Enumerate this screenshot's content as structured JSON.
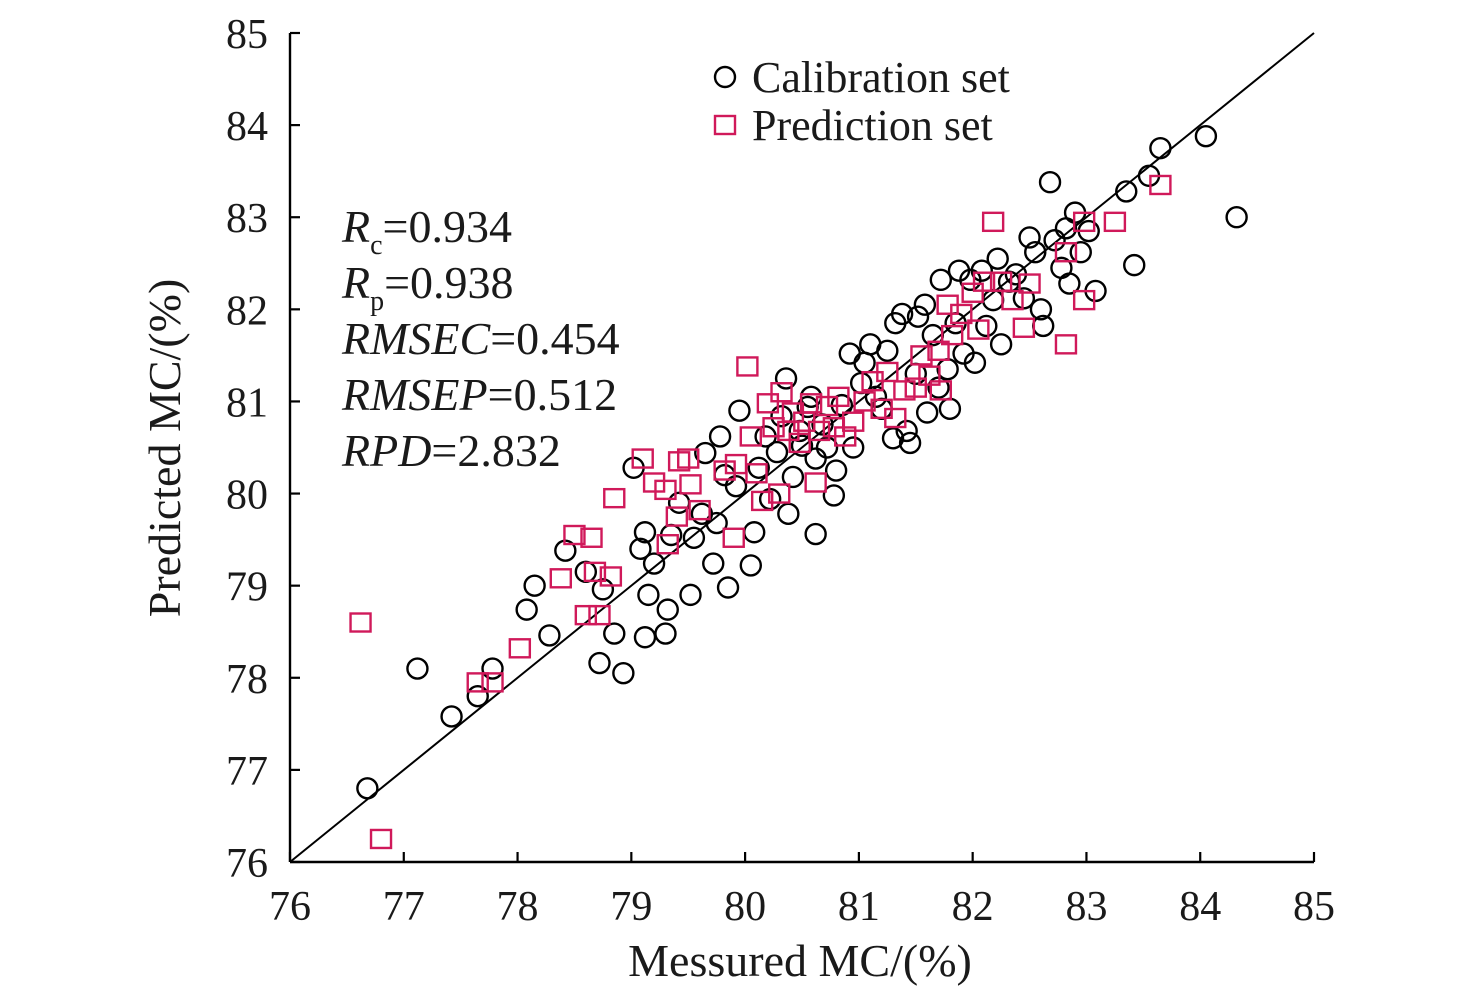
{
  "chart_data": {
    "type": "scatter",
    "xlabel": "Messured MC/(%)",
    "ylabel": "Predicted MC/(%)",
    "xlim": [
      76,
      85
    ],
    "ylim": [
      76,
      85
    ],
    "x_ticks": [
      "76",
      "77",
      "78",
      "79",
      "80",
      "81",
      "82",
      "83",
      "84",
      "85"
    ],
    "y_ticks": [
      "76",
      "77",
      "78",
      "79",
      "80",
      "81",
      "82",
      "83",
      "84",
      "85"
    ],
    "reference_line": {
      "x": [
        76,
        85
      ],
      "y": [
        76,
        85
      ]
    },
    "legend": {
      "placement": "top-right",
      "items": [
        {
          "label": "Calibration set",
          "marker": "circle",
          "color": "#000000"
        },
        {
          "label": "Prediction set",
          "marker": "square",
          "color": "#d0195a"
        }
      ]
    },
    "stats": [
      {
        "name": "R",
        "sub": "c",
        "value": "=0.934"
      },
      {
        "name": "R",
        "sub": "p",
        "value": "=0.938"
      },
      {
        "name": "RMSEC",
        "sub": "",
        "value": "=0.454"
      },
      {
        "name": "RMSEP",
        "sub": "",
        "value": "=0.512"
      },
      {
        "name": "RPD",
        "sub": "",
        "value": "=2.832"
      }
    ],
    "series": [
      {
        "name": "Calibration set",
        "color": "#000000",
        "marker": "circle",
        "points": [
          [
            76.68,
            76.8
          ],
          [
            77.12,
            78.1
          ],
          [
            77.42,
            77.58
          ],
          [
            77.65,
            77.8
          ],
          [
            77.78,
            78.1
          ],
          [
            78.08,
            78.74
          ],
          [
            78.15,
            79.0
          ],
          [
            78.28,
            78.46
          ],
          [
            78.42,
            79.38
          ],
          [
            78.6,
            79.15
          ],
          [
            78.72,
            78.16
          ],
          [
            78.75,
            78.96
          ],
          [
            78.85,
            78.48
          ],
          [
            78.93,
            78.05
          ],
          [
            79.02,
            80.28
          ],
          [
            79.08,
            79.4
          ],
          [
            79.12,
            79.58
          ],
          [
            79.15,
            78.9
          ],
          [
            79.2,
            79.24
          ],
          [
            79.12,
            78.44
          ],
          [
            79.3,
            78.48
          ],
          [
            79.32,
            78.74
          ],
          [
            79.35,
            79.55
          ],
          [
            79.42,
            79.9
          ],
          [
            79.52,
            78.9
          ],
          [
            79.55,
            79.52
          ],
          [
            79.62,
            79.78
          ],
          [
            79.65,
            80.44
          ],
          [
            79.72,
            79.24
          ],
          [
            79.75,
            79.68
          ],
          [
            79.78,
            80.62
          ],
          [
            79.82,
            80.2
          ],
          [
            79.92,
            80.08
          ],
          [
            79.95,
            80.9
          ],
          [
            79.85,
            78.98
          ],
          [
            80.05,
            79.22
          ],
          [
            80.08,
            79.58
          ],
          [
            80.12,
            80.28
          ],
          [
            80.18,
            80.62
          ],
          [
            80.22,
            79.94
          ],
          [
            80.28,
            80.45
          ],
          [
            80.32,
            80.84
          ],
          [
            80.36,
            81.25
          ],
          [
            80.38,
            79.78
          ],
          [
            80.42,
            80.18
          ],
          [
            80.48,
            80.68
          ],
          [
            80.5,
            80.52
          ],
          [
            80.55,
            80.94
          ],
          [
            80.58,
            81.05
          ],
          [
            80.62,
            79.56
          ],
          [
            80.62,
            80.38
          ],
          [
            80.68,
            80.75
          ],
          [
            80.72,
            80.5
          ],
          [
            80.78,
            79.98
          ],
          [
            80.8,
            80.25
          ],
          [
            80.85,
            80.96
          ],
          [
            80.92,
            81.52
          ],
          [
            80.95,
            80.5
          ],
          [
            81.02,
            81.2
          ],
          [
            81.05,
            81.42
          ],
          [
            81.1,
            81.62
          ],
          [
            81.15,
            81.05
          ],
          [
            81.2,
            80.92
          ],
          [
            81.25,
            81.55
          ],
          [
            81.3,
            80.6
          ],
          [
            81.32,
            81.85
          ],
          [
            81.38,
            81.95
          ],
          [
            81.42,
            80.68
          ],
          [
            81.45,
            80.55
          ],
          [
            81.5,
            81.3
          ],
          [
            81.52,
            81.92
          ],
          [
            81.58,
            82.05
          ],
          [
            81.6,
            80.88
          ],
          [
            81.65,
            81.72
          ],
          [
            81.7,
            81.15
          ],
          [
            81.72,
            82.32
          ],
          [
            81.78,
            81.35
          ],
          [
            81.8,
            80.92
          ],
          [
            81.85,
            81.85
          ],
          [
            81.88,
            82.42
          ],
          [
            81.92,
            81.52
          ],
          [
            81.98,
            82.32
          ],
          [
            82.02,
            81.42
          ],
          [
            82.08,
            82.42
          ],
          [
            82.12,
            81.82
          ],
          [
            82.18,
            82.1
          ],
          [
            82.22,
            82.55
          ],
          [
            82.25,
            81.62
          ],
          [
            82.32,
            82.3
          ],
          [
            82.38,
            82.38
          ],
          [
            82.45,
            82.12
          ],
          [
            82.5,
            82.78
          ],
          [
            82.55,
            82.62
          ],
          [
            82.6,
            82.0
          ],
          [
            82.62,
            81.82
          ],
          [
            82.68,
            83.38
          ],
          [
            82.72,
            82.75
          ],
          [
            82.78,
            82.45
          ],
          [
            82.82,
            82.88
          ],
          [
            82.85,
            82.28
          ],
          [
            82.9,
            83.05
          ],
          [
            82.95,
            82.62
          ],
          [
            83.02,
            82.85
          ],
          [
            83.08,
            82.2
          ],
          [
            83.35,
            83.28
          ],
          [
            83.42,
            82.48
          ],
          [
            83.55,
            83.45
          ],
          [
            83.65,
            83.75
          ],
          [
            84.05,
            83.88
          ],
          [
            84.32,
            83.0
          ]
        ]
      },
      {
        "name": "Prediction set",
        "color": "#d0195a",
        "marker": "square",
        "points": [
          [
            76.62,
            78.6
          ],
          [
            76.8,
            76.25
          ],
          [
            77.65,
            77.95
          ],
          [
            77.78,
            77.95
          ],
          [
            78.02,
            78.32
          ],
          [
            78.38,
            79.08
          ],
          [
            78.5,
            79.55
          ],
          [
            78.6,
            78.68
          ],
          [
            78.65,
            79.52
          ],
          [
            78.68,
            79.15
          ],
          [
            78.72,
            78.68
          ],
          [
            78.82,
            79.1
          ],
          [
            78.85,
            79.95
          ],
          [
            79.1,
            80.38
          ],
          [
            79.2,
            80.12
          ],
          [
            79.3,
            80.04
          ],
          [
            79.32,
            79.45
          ],
          [
            79.4,
            79.75
          ],
          [
            79.42,
            80.35
          ],
          [
            79.5,
            80.38
          ],
          [
            79.52,
            80.1
          ],
          [
            79.6,
            79.82
          ],
          [
            79.82,
            80.25
          ],
          [
            79.92,
            80.32
          ],
          [
            79.9,
            79.52
          ],
          [
            80.02,
            81.38
          ],
          [
            80.05,
            80.62
          ],
          [
            80.1,
            80.22
          ],
          [
            80.15,
            79.92
          ],
          [
            80.2,
            80.98
          ],
          [
            80.25,
            80.72
          ],
          [
            80.3,
            80.0
          ],
          [
            80.32,
            81.1
          ],
          [
            80.38,
            80.68
          ],
          [
            80.42,
            80.88
          ],
          [
            80.48,
            80.55
          ],
          [
            80.52,
            80.78
          ],
          [
            80.58,
            80.98
          ],
          [
            80.62,
            80.12
          ],
          [
            80.65,
            80.68
          ],
          [
            80.72,
            80.95
          ],
          [
            80.78,
            80.72
          ],
          [
            80.82,
            81.05
          ],
          [
            80.88,
            80.62
          ],
          [
            80.95,
            80.78
          ],
          [
            81.05,
            81.0
          ],
          [
            81.12,
            81.22
          ],
          [
            81.2,
            80.92
          ],
          [
            81.25,
            81.32
          ],
          [
            81.32,
            80.82
          ],
          [
            81.4,
            81.12
          ],
          [
            81.5,
            81.15
          ],
          [
            81.55,
            81.5
          ],
          [
            81.62,
            81.28
          ],
          [
            81.7,
            81.55
          ],
          [
            81.72,
            81.12
          ],
          [
            81.78,
            82.05
          ],
          [
            81.82,
            81.72
          ],
          [
            81.9,
            81.95
          ],
          [
            82.0,
            82.18
          ],
          [
            82.05,
            81.78
          ],
          [
            82.1,
            82.3
          ],
          [
            82.18,
            82.95
          ],
          [
            82.25,
            82.3
          ],
          [
            82.35,
            82.1
          ],
          [
            82.45,
            81.8
          ],
          [
            82.5,
            82.28
          ],
          [
            82.82,
            81.62
          ],
          [
            82.82,
            82.62
          ],
          [
            82.98,
            82.1
          ],
          [
            82.98,
            82.95
          ],
          [
            83.25,
            82.95
          ],
          [
            83.65,
            83.35
          ]
        ]
      }
    ]
  }
}
